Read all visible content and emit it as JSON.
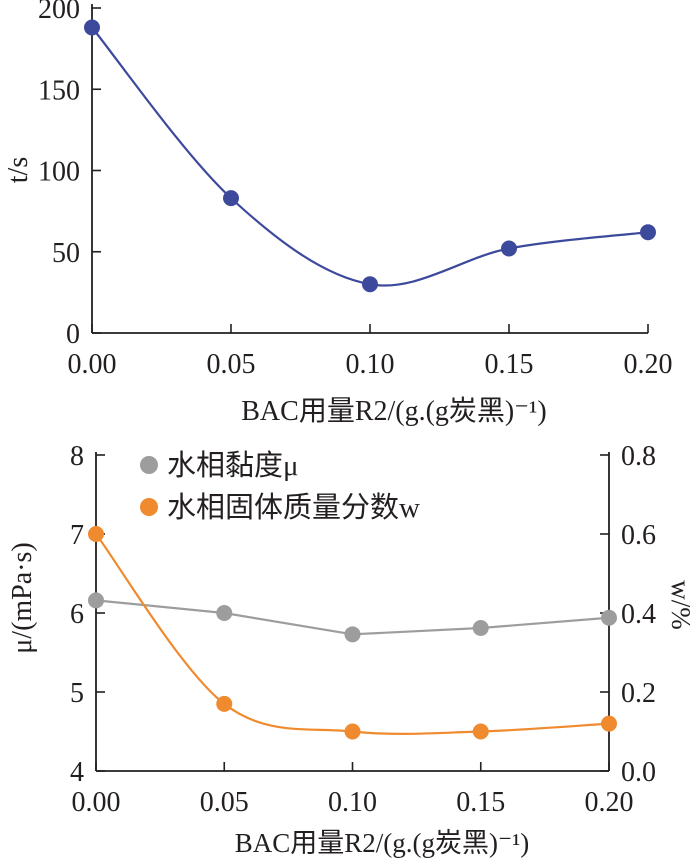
{
  "chart_data": [
    {
      "type": "line",
      "xlabel": "BAC用量R2/(g.(g炭黑)⁻¹)",
      "ylabel": "t/s",
      "x": [
        0.0,
        0.05,
        0.1,
        0.15,
        0.2
      ],
      "xlim": [
        0,
        0.2
      ],
      "x_tick_labels": [
        "0.00",
        "0.05",
        "0.10",
        "0.15",
        "0.20"
      ],
      "ylim": [
        0,
        200
      ],
      "y_tick_labels": [
        "0",
        "50",
        "100",
        "150",
        "200"
      ],
      "grid": false,
      "series": [
        {
          "values": [
            188,
            83,
            30,
            52,
            62
          ],
          "axis": "left",
          "color": "#3d4a9c",
          "marker": "circle",
          "smooth": true
        }
      ]
    },
    {
      "type": "line",
      "xlabel": "BAC用量R2/(g.(g炭黑)⁻¹)",
      "ylabel": "μ/(mPa·s)",
      "ylabel_right": "w/%",
      "x": [
        0.0,
        0.05,
        0.1,
        0.15,
        0.2
      ],
      "xlim": [
        0,
        0.2
      ],
      "x_tick_labels": [
        "0.00",
        "0.05",
        "0.10",
        "0.15",
        "0.20"
      ],
      "ylim": [
        4,
        8
      ],
      "y_tick_labels": [
        "4",
        "5",
        "6",
        "7",
        "8"
      ],
      "ylim_right": [
        0,
        0.8
      ],
      "y_right_tick_labels": [
        "0.0",
        "0.2",
        "0.4",
        "0.6",
        "0.8"
      ],
      "legend": "top-left",
      "grid": false,
      "series": [
        {
          "name": "水相黏度μ",
          "values": [
            6.16,
            6.0,
            5.73,
            5.81,
            5.94
          ],
          "axis": "left",
          "color": "#9d9d9d",
          "marker": "circle",
          "smooth": false
        },
        {
          "name": "水相固体质量分数w",
          "values": [
            0.6,
            0.17,
            0.1,
            0.1,
            0.12
          ],
          "axis": "right",
          "color": "#f08a2e",
          "marker": "circle",
          "smooth": true
        }
      ]
    }
  ]
}
